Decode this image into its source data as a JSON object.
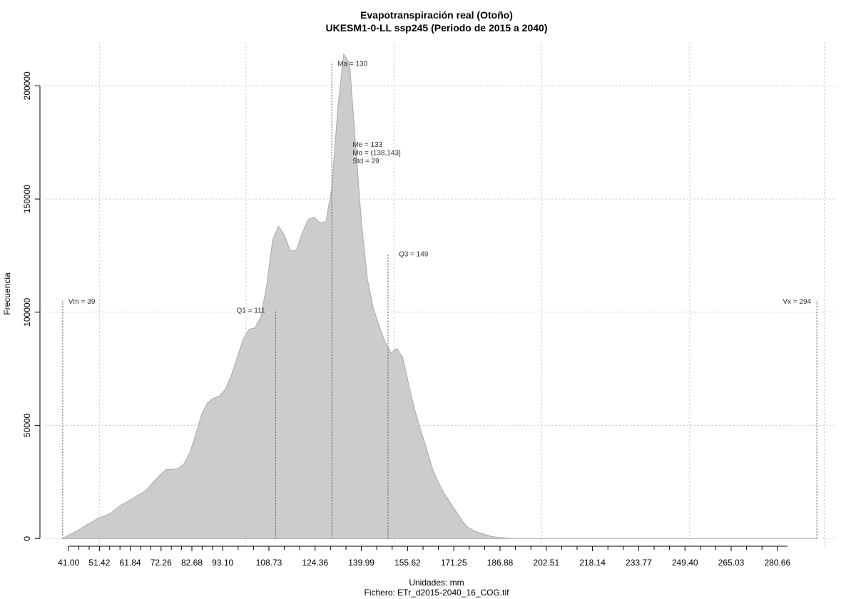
{
  "chart_data": {
    "type": "area",
    "title": "Evapotranspiración real (Otoño)",
    "subtitle": "UKESM1-0-LL ssp245 (Periodo de 2015 a 2040)",
    "xlabel": "Unidades: mm",
    "ylabel": "Frecuencia",
    "caption": "Fichero: ETr_d2015-2040_16_COG.tif",
    "xlim": [
      33,
      300
    ],
    "ylim": [
      -4000,
      219000
    ],
    "grid": true,
    "fill_color": "#cccccc",
    "line_color": "#aaaaaa",
    "x_ticks": [
      "41.00",
      "51.42",
      "61.84",
      "72.26",
      "82.68",
      "93.10",
      "108.73",
      "124.36",
      "139.99",
      "155.62",
      "171.25",
      "186.88",
      "202.51",
      "218.14",
      "233.77",
      "249.40",
      "265.03",
      "280.66"
    ],
    "y_ticks": [
      "0",
      "50000",
      "100000",
      "150000",
      "200000"
    ],
    "y_tick_values": [
      0,
      50000,
      100000,
      150000,
      200000
    ],
    "x_grid_values": [
      51.42,
      101.0,
      151.0,
      201.0,
      251.0,
      296.5
    ],
    "x": [
      39,
      41,
      44,
      47,
      51,
      55,
      59,
      63,
      67,
      71,
      74,
      76,
      78,
      80,
      82,
      84,
      86,
      88,
      90,
      92,
      94,
      96,
      98,
      100,
      102,
      104,
      106,
      108,
      110,
      112,
      114,
      116,
      118,
      120,
      122,
      124,
      126,
      128,
      130,
      132,
      134,
      136,
      138,
      140,
      142,
      144,
      146,
      148,
      150,
      152,
      154,
      156,
      158,
      160,
      162,
      164,
      166,
      168,
      170,
      172,
      174,
      176,
      178,
      180,
      182,
      184,
      186,
      188,
      190,
      192,
      194,
      196,
      198,
      200,
      202,
      205,
      208,
      212,
      216,
      222,
      230,
      240,
      260,
      280,
      294
    ],
    "y": [
      0,
      1500,
      3500,
      6000,
      9000,
      11000,
      15000,
      18000,
      21000,
      27000,
      30500,
      30500,
      31000,
      33000,
      38000,
      46000,
      55000,
      60000,
      62000,
      63000,
      66000,
      72000,
      80000,
      88000,
      92500,
      93000,
      98000,
      112000,
      132000,
      138000,
      134000,
      127000,
      127500,
      135000,
      141000,
      142000,
      139500,
      140000,
      155000,
      190000,
      214000,
      210000,
      175000,
      140000,
      115000,
      102000,
      94000,
      87000,
      82000,
      84000,
      80000,
      68000,
      57000,
      48000,
      40000,
      31000,
      25000,
      20000,
      16000,
      12000,
      8000,
      5000,
      3500,
      2500,
      1700,
      1000,
      500,
      300,
      150,
      80,
      40,
      20,
      10,
      0,
      0,
      0,
      0,
      0,
      0,
      0,
      0,
      0,
      0,
      0,
      0
    ],
    "annotations": [
      {
        "label": "Vm = 39",
        "x": 39,
        "y_top": 105000,
        "anchor": "start",
        "dx": 8
      },
      {
        "label": "Q1 = 111",
        "x": 111,
        "y_top": 101000,
        "anchor": "end",
        "dx": -15
      },
      {
        "label": "Ma = 130",
        "x": 130,
        "y_top": 210000,
        "anchor": "start",
        "dx": 8
      },
      {
        "label": "Q3 = 149",
        "x": 149,
        "y_top": 126000,
        "anchor": "start",
        "dx": 15
      },
      {
        "label": "Vx = 294",
        "x": 294,
        "y_top": 105000,
        "anchor": "end",
        "dx": -8
      }
    ],
    "stats": [
      "Me = 133",
      "Mo = (138,143]",
      "Std = 29"
    ],
    "stats_x": 137
  }
}
